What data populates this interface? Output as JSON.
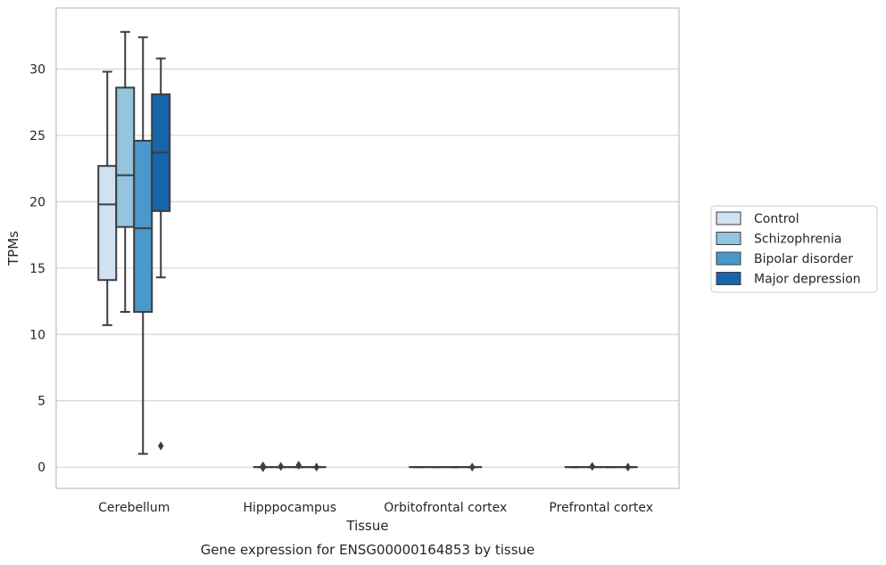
{
  "chart_data": {
    "type": "box",
    "title": "",
    "caption": "Gene expression for ENSG00000164853 by tissue",
    "xlabel": "Tissue",
    "ylabel": "TPMs",
    "ylim": [
      -1.6,
      34.6
    ],
    "yticks": [
      0,
      5,
      10,
      15,
      20,
      25,
      30
    ],
    "grid": true,
    "legend_position": "right",
    "categories": [
      "Cerebellum",
      "Hipppocampus",
      "Orbitofrontal cortex",
      "Prefrontal cortex"
    ],
    "series": [
      {
        "name": "Control",
        "color": "#d0e1f2",
        "boxes": [
          {
            "whislo": 10.7,
            "q1": 14.1,
            "med": 19.8,
            "q3": 22.7,
            "whishi": 29.8,
            "fliers": []
          },
          {
            "whislo": 0,
            "q1": 0,
            "med": 0,
            "q3": 0,
            "whishi": 0,
            "fliers": [
              0.1,
              0.0,
              -0.05
            ]
          },
          {
            "whislo": 0,
            "q1": 0,
            "med": 0,
            "q3": 0,
            "whishi": 0,
            "fliers": []
          },
          {
            "whislo": 0,
            "q1": 0,
            "med": 0,
            "q3": 0,
            "whishi": 0,
            "fliers": []
          }
        ]
      },
      {
        "name": "Schizophrenia",
        "color": "#94c4df",
        "boxes": [
          {
            "whislo": 11.7,
            "q1": 18.1,
            "med": 22.0,
            "q3": 28.6,
            "whishi": 32.8,
            "fliers": []
          },
          {
            "whislo": 0,
            "q1": 0,
            "med": 0,
            "q3": 0,
            "whishi": 0,
            "fliers": [
              0.05
            ]
          },
          {
            "whislo": 0,
            "q1": 0,
            "med": 0,
            "q3": 0,
            "whishi": 0,
            "fliers": []
          },
          {
            "whislo": 0,
            "q1": 0,
            "med": 0,
            "q3": 0,
            "whishi": 0,
            "fliers": [
              0.05
            ]
          }
        ]
      },
      {
        "name": "Bipolar disorder",
        "color": "#4a98c9",
        "boxes": [
          {
            "whislo": 1.0,
            "q1": 11.7,
            "med": 18.0,
            "q3": 24.6,
            "whishi": 32.4,
            "fliers": []
          },
          {
            "whislo": 0,
            "q1": 0,
            "med": 0,
            "q3": 0,
            "whishi": 0,
            "fliers": [
              0.15
            ]
          },
          {
            "whislo": 0,
            "q1": 0,
            "med": 0,
            "q3": 0,
            "whishi": 0,
            "fliers": []
          },
          {
            "whislo": 0,
            "q1": 0,
            "med": 0,
            "q3": 0,
            "whishi": 0,
            "fliers": []
          }
        ]
      },
      {
        "name": "Major depression",
        "color": "#1764ab",
        "boxes": [
          {
            "whislo": 14.3,
            "q1": 19.3,
            "med": 23.7,
            "q3": 28.1,
            "whishi": 30.8,
            "fliers": [
              1.6
            ]
          },
          {
            "whislo": 0,
            "q1": 0,
            "med": 0,
            "q3": 0,
            "whishi": 0,
            "fliers": [
              0.0
            ]
          },
          {
            "whislo": 0,
            "q1": 0,
            "med": 0,
            "q3": 0,
            "whishi": 0,
            "fliers": [
              0.0
            ]
          },
          {
            "whislo": 0,
            "q1": 0,
            "med": 0,
            "q3": 0,
            "whishi": 0,
            "fliers": [
              0.0
            ]
          }
        ]
      }
    ]
  }
}
